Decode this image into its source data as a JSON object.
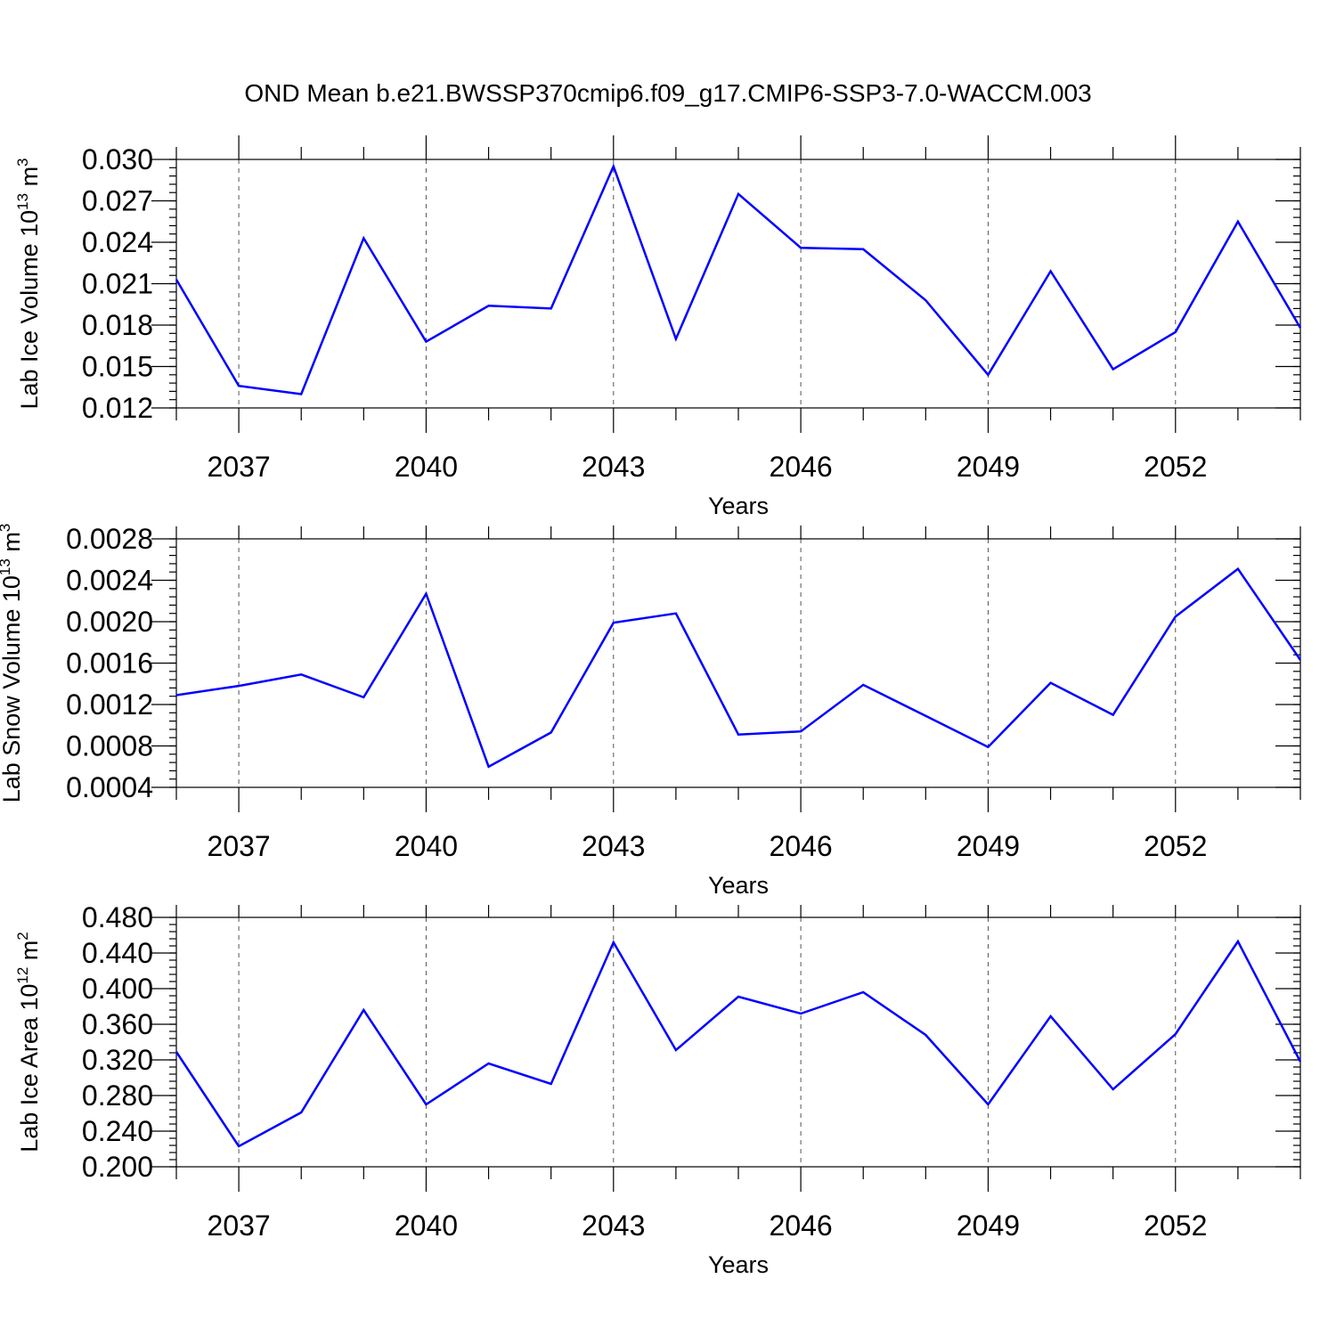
{
  "title": "OND Mean b.e21.BWSSP370cmip6.f09_g17.CMIP6-SSP3-7.0-WACCM.003",
  "line_color": "#0000ff",
  "chart_data": [
    {
      "type": "line",
      "ylabel": "Lab Ice Volume 10",
      "ylabel_exp": "13",
      "ylabel_unit": " m",
      "ylabel_unit_exp": "3",
      "xlabel": "Years",
      "xlim": [
        2036,
        2054
      ],
      "ylim": [
        0.012,
        0.03
      ],
      "x_ticks": [
        2037,
        2040,
        2043,
        2046,
        2049,
        2052
      ],
      "x_tick_labels": [
        "2037",
        "2040",
        "2043",
        "2046",
        "2049",
        "2052"
      ],
      "y_ticks": [
        0.012,
        0.015,
        0.018,
        0.021,
        0.024,
        0.027,
        0.03
      ],
      "y_tick_labels": [
        "0.012",
        "0.015",
        "0.018",
        "0.021",
        "0.024",
        "0.027",
        "0.030"
      ],
      "y_minor_step": 0.0006,
      "grid": "vertical dashed at major x ticks",
      "x": [
        2036,
        2037,
        2038,
        2039,
        2040,
        2041,
        2042,
        2043,
        2044,
        2045,
        2046,
        2047,
        2048,
        2049,
        2050,
        2051,
        2052,
        2053,
        2054
      ],
      "series": [
        {
          "values": [
            0.0213,
            0.0136,
            0.013,
            0.0243,
            0.0168,
            0.0194,
            0.0192,
            0.0295,
            0.017,
            0.0275,
            0.0236,
            0.0235,
            0.0198,
            0.0144,
            0.0219,
            0.0148,
            0.0175,
            0.0255,
            0.0178
          ]
        }
      ]
    },
    {
      "type": "line",
      "ylabel": "Lab Snow Volume 10",
      "ylabel_exp": "13",
      "ylabel_unit": " m",
      "ylabel_unit_exp": "3",
      "xlabel": "Years",
      "xlim": [
        2036,
        2054
      ],
      "ylim": [
        0.0004,
        0.0028
      ],
      "x_ticks": [
        2037,
        2040,
        2043,
        2046,
        2049,
        2052
      ],
      "x_tick_labels": [
        "2037",
        "2040",
        "2043",
        "2046",
        "2049",
        "2052"
      ],
      "y_ticks": [
        0.0004,
        0.0008,
        0.0012,
        0.0016,
        0.002,
        0.0024,
        0.0028
      ],
      "y_tick_labels": [
        "0.0004",
        "0.0008",
        "0.0012",
        "0.0016",
        "0.0020",
        "0.0024",
        "0.0028"
      ],
      "y_minor_step": 8e-05,
      "grid": "vertical dashed at major x ticks",
      "x": [
        2036,
        2037,
        2038,
        2039,
        2040,
        2041,
        2042,
        2043,
        2044,
        2045,
        2046,
        2047,
        2048,
        2049,
        2050,
        2051,
        2052,
        2053,
        2054
      ],
      "series": [
        {
          "values": [
            0.00129,
            0.00138,
            0.00149,
            0.00127,
            0.00227,
            0.0006,
            0.00093,
            0.00199,
            0.00208,
            0.00091,
            0.00094,
            0.00139,
            0.00109,
            0.00079,
            0.00141,
            0.0011,
            0.00205,
            0.00251,
            0.00163
          ]
        }
      ]
    },
    {
      "type": "line",
      "ylabel": "Lab Ice Area 10",
      "ylabel_exp": "12",
      "ylabel_unit": " m",
      "ylabel_unit_exp": "2",
      "xlabel": "Years",
      "xlim": [
        2036,
        2054
      ],
      "ylim": [
        0.2,
        0.48
      ],
      "x_ticks": [
        2037,
        2040,
        2043,
        2046,
        2049,
        2052
      ],
      "x_tick_labels": [
        "2037",
        "2040",
        "2043",
        "2046",
        "2049",
        "2052"
      ],
      "y_ticks": [
        0.2,
        0.24,
        0.28,
        0.32,
        0.36,
        0.4,
        0.44,
        0.48
      ],
      "y_tick_labels": [
        "0.200",
        "0.240",
        "0.280",
        "0.320",
        "0.360",
        "0.400",
        "0.440",
        "0.480"
      ],
      "y_minor_step": 0.008,
      "grid": "vertical dashed at major x ticks",
      "x": [
        2036,
        2037,
        2038,
        2039,
        2040,
        2041,
        2042,
        2043,
        2044,
        2045,
        2046,
        2047,
        2048,
        2049,
        2050,
        2051,
        2052,
        2053,
        2054
      ],
      "series": [
        {
          "values": [
            0.329,
            0.223,
            0.261,
            0.376,
            0.27,
            0.316,
            0.293,
            0.452,
            0.331,
            0.391,
            0.372,
            0.396,
            0.348,
            0.27,
            0.369,
            0.287,
            0.349,
            0.453,
            0.318
          ]
        }
      ]
    }
  ]
}
